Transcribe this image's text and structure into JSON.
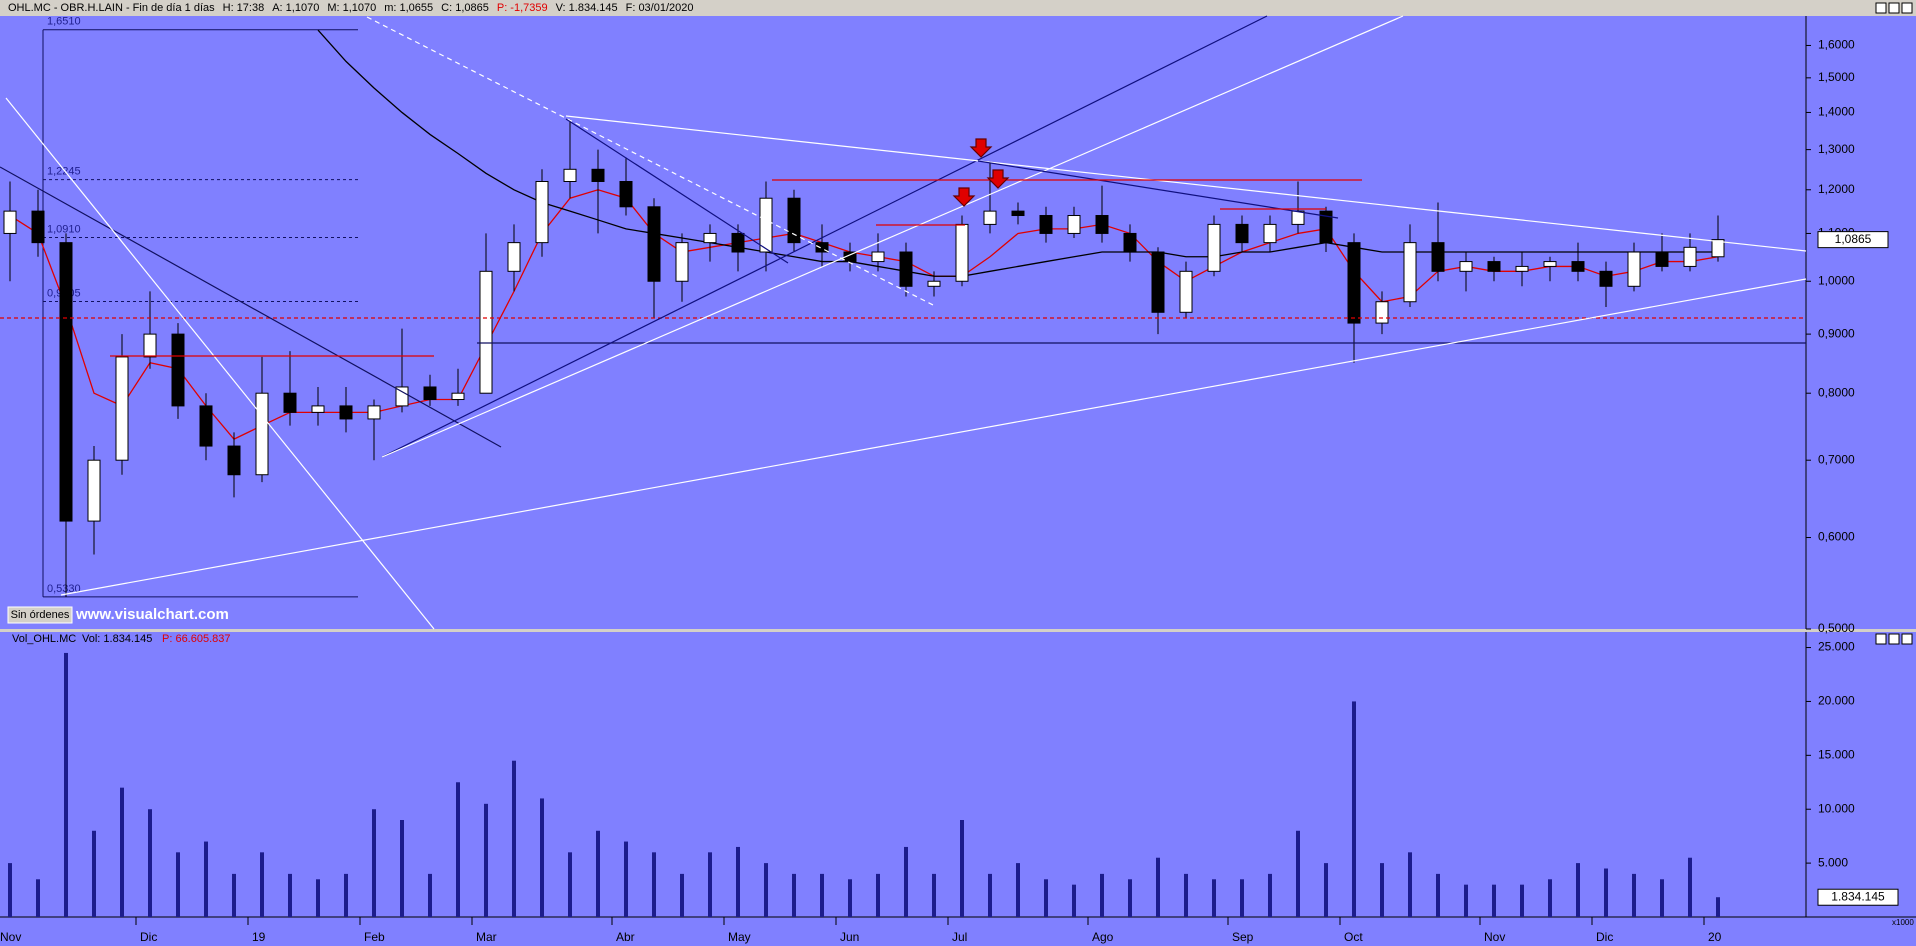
{
  "header": {
    "symbol": "OHL.MC - OBR.H.LAIN - Fin de día 1 días",
    "items": [
      "H: 17:38",
      "A: 1,1070",
      "M: 1,1070",
      "m: 1,0655",
      "C: 1,0865"
    ],
    "change": "P: -1,7359",
    "tail": [
      "V: 1.834.145",
      "F: 03/01/2020"
    ]
  },
  "badge": "Sin órdenes",
  "watermark": "www.visualchart.com",
  "chart_data": [
    {
      "type": "candlestick",
      "log_scale": true,
      "up_color": "#ffffff",
      "down_color": "#000000",
      "ylim": [
        0.5,
        1.69
      ],
      "yticks": [
        {
          "value": 0.5,
          "label": "0,5000"
        },
        {
          "value": 0.6,
          "label": "0,6000"
        },
        {
          "value": 0.7,
          "label": "0,7000"
        },
        {
          "value": 0.8,
          "label": "0,8000"
        },
        {
          "value": 0.9,
          "label": "0,9000"
        },
        {
          "value": 1.0,
          "label": "1,0000"
        },
        {
          "value": 1.1,
          "label": "1,1000"
        },
        {
          "value": 1.2,
          "label": "1,2000"
        },
        {
          "value": 1.3,
          "label": "1,3000"
        },
        {
          "value": 1.4,
          "label": "1,4000"
        },
        {
          "value": 1.5,
          "label": "1,5000"
        },
        {
          "value": 1.6,
          "label": "1,6000"
        }
      ],
      "open": [
        1.1,
        1.15,
        1.08,
        0.62,
        0.7,
        0.86,
        0.9,
        0.78,
        0.72,
        0.68,
        0.8,
        0.77,
        0.78,
        0.76,
        0.78,
        0.81,
        0.79,
        0.8,
        1.02,
        1.08,
        1.22,
        1.25,
        1.22,
        1.16,
        1.0,
        1.08,
        1.1,
        1.06,
        1.18,
        1.08,
        1.06,
        1.04,
        1.06,
        0.99,
        1.0,
        1.12,
        1.15,
        1.14,
        1.1,
        1.14,
        1.1,
        1.06,
        0.94,
        1.02,
        1.12,
        1.08,
        1.12,
        1.15,
        1.08,
        0.92,
        0.96,
        1.08,
        1.02,
        1.04,
        1.02,
        1.03,
        1.04,
        1.02,
        0.99,
        1.06,
        1.03,
        1.05
      ],
      "high": [
        1.22,
        1.2,
        1.1,
        0.72,
        0.9,
        0.98,
        0.92,
        0.8,
        0.74,
        0.86,
        0.87,
        0.81,
        0.81,
        0.79,
        0.91,
        0.83,
        0.84,
        1.1,
        1.12,
        1.25,
        1.38,
        1.3,
        1.28,
        1.18,
        1.1,
        1.12,
        1.12,
        1.22,
        1.2,
        1.12,
        1.08,
        1.1,
        1.08,
        1.02,
        1.14,
        1.27,
        1.17,
        1.16,
        1.16,
        1.21,
        1.12,
        1.07,
        1.04,
        1.14,
        1.14,
        1.14,
        1.22,
        1.16,
        1.1,
        0.98,
        1.12,
        1.17,
        1.06,
        1.05,
        1.06,
        1.05,
        1.08,
        1.04,
        1.08,
        1.1,
        1.1,
        1.14
      ],
      "low": [
        1.0,
        1.05,
        0.533,
        0.58,
        0.68,
        0.84,
        0.76,
        0.7,
        0.65,
        0.67,
        0.75,
        0.75,
        0.74,
        0.7,
        0.77,
        0.78,
        0.78,
        0.8,
        0.98,
        1.05,
        1.18,
        1.1,
        1.14,
        0.93,
        0.96,
        1.04,
        1.02,
        1.02,
        1.06,
        1.03,
        1.02,
        1.02,
        0.97,
        0.97,
        0.99,
        1.1,
        1.12,
        1.08,
        1.09,
        1.08,
        1.04,
        0.9,
        0.93,
        1.01,
        1.06,
        1.06,
        1.1,
        1.06,
        0.85,
        0.9,
        0.95,
        1.0,
        0.98,
        1.0,
        0.99,
        1.0,
        1.0,
        0.95,
        0.98,
        1.02,
        1.02,
        1.04
      ],
      "close": [
        1.15,
        1.08,
        0.62,
        0.7,
        0.86,
        0.9,
        0.78,
        0.72,
        0.68,
        0.8,
        0.77,
        0.78,
        0.76,
        0.78,
        0.81,
        0.79,
        0.8,
        1.02,
        1.08,
        1.22,
        1.25,
        1.22,
        1.16,
        1.0,
        1.08,
        1.1,
        1.06,
        1.18,
        1.08,
        1.06,
        1.04,
        1.06,
        0.99,
        1.0,
        1.12,
        1.15,
        1.14,
        1.1,
        1.14,
        1.1,
        1.06,
        0.94,
        1.02,
        1.12,
        1.08,
        1.12,
        1.15,
        1.08,
        0.92,
        0.96,
        1.08,
        1.02,
        1.04,
        1.02,
        1.03,
        1.04,
        1.02,
        0.99,
        1.06,
        1.03,
        1.07,
        1.0865
      ],
      "moving_averages": [
        {
          "color": "#e00000",
          "values": [
            1.14,
            1.1,
            0.95,
            0.8,
            0.78,
            0.85,
            0.84,
            0.78,
            0.73,
            0.75,
            0.77,
            0.77,
            0.77,
            0.77,
            0.78,
            0.79,
            0.79,
            0.88,
            0.98,
            1.1,
            1.18,
            1.2,
            1.18,
            1.1,
            1.06,
            1.07,
            1.08,
            1.09,
            1.1,
            1.08,
            1.06,
            1.05,
            1.04,
            1.01,
            1.01,
            1.05,
            1.1,
            1.11,
            1.11,
            1.12,
            1.1,
            1.04,
            1.0,
            1.03,
            1.06,
            1.08,
            1.1,
            1.11,
            1.02,
            0.96,
            0.97,
            1.02,
            1.03,
            1.02,
            1.02,
            1.03,
            1.03,
            1.01,
            1.02,
            1.04,
            1.04,
            1.05
          ]
        },
        {
          "color": "#000000",
          "values": [
            null,
            null,
            null,
            null,
            null,
            null,
            null,
            null,
            null,
            null,
            null,
            1.65,
            1.55,
            1.47,
            1.4,
            1.34,
            1.29,
            1.24,
            1.2,
            1.17,
            1.15,
            1.13,
            1.11,
            1.1,
            1.09,
            1.08,
            1.07,
            1.06,
            1.05,
            1.04,
            1.04,
            1.03,
            1.02,
            1.01,
            1.01,
            1.02,
            1.03,
            1.04,
            1.05,
            1.06,
            1.06,
            1.06,
            1.05,
            1.05,
            1.06,
            1.06,
            1.07,
            1.08,
            1.07,
            1.06,
            1.06,
            1.06,
            1.06,
            1.06,
            1.06,
            1.06,
            1.06,
            1.06,
            1.06,
            1.06,
            1.06,
            1.06
          ]
        }
      ],
      "fib_levels": [
        {
          "value": 1.651,
          "label": "1,6510"
        },
        {
          "value": 1.2245,
          "label": "1,2245"
        },
        {
          "value": 1.091,
          "label": "1,0910"
        },
        {
          "value": 0.9605,
          "label": "0,9605"
        },
        {
          "value": 0.533,
          "label": "0,5330"
        }
      ],
      "last_price": {
        "value": 1.0865,
        "label": "1,0865"
      }
    },
    {
      "type": "bar",
      "title": "Vol_OHL.MC",
      "info": "Vol: 1.834.145",
      "info2": "P: 66.605.837",
      "unit_note": "x1000",
      "color": "#1c1c8c",
      "categories": [
        "Nov",
        null,
        null,
        null,
        null,
        "Dic",
        null,
        null,
        null,
        "19",
        null,
        null,
        null,
        "Feb",
        null,
        null,
        null,
        "Mar",
        null,
        null,
        null,
        null,
        "Abr",
        null,
        null,
        null,
        "May",
        null,
        null,
        null,
        "Jun",
        null,
        null,
        null,
        "Jul",
        null,
        null,
        null,
        null,
        "Ago",
        null,
        null,
        null,
        null,
        "Sep",
        null,
        null,
        null,
        "Oct",
        null,
        null,
        null,
        null,
        "Nov",
        null,
        null,
        null,
        "Dic",
        null,
        null,
        null,
        "20"
      ],
      "values": [
        5000,
        3500,
        24500,
        8000,
        12000,
        10000,
        6000,
        7000,
        4000,
        6000,
        4000,
        3500,
        4000,
        10000,
        9000,
        4000,
        12500,
        10500,
        14500,
        11000,
        6000,
        8000,
        7000,
        6000,
        4000,
        6000,
        6500,
        5000,
        4000,
        4000,
        3500,
        4000,
        6500,
        4000,
        9000,
        4000,
        5000,
        3500,
        3000,
        4000,
        3500,
        5500,
        4000,
        3500,
        3500,
        4000,
        8000,
        5000,
        20000,
        5000,
        6000,
        4000,
        3000,
        3000,
        3000,
        3500,
        5000,
        4500,
        4000,
        3500,
        5500,
        1834.145
      ],
      "value_labels": [
        null,
        null,
        null,
        null,
        null,
        null,
        null,
        null,
        null,
        null,
        null,
        null,
        null,
        null,
        null,
        null,
        null,
        null,
        null,
        null,
        null,
        null,
        null,
        null,
        null,
        null,
        null,
        null,
        null,
        null,
        null,
        null,
        null,
        null,
        null,
        null,
        null,
        null,
        null,
        null,
        null,
        null,
        null,
        null,
        null,
        null,
        null,
        null,
        null,
        null,
        null,
        null,
        null,
        null,
        null,
        null,
        null,
        null,
        null,
        null,
        null,
        "1.834.145"
      ],
      "ylim": [
        0,
        25700
      ],
      "yticks": [
        {
          "value": 5000,
          "label": "5.000"
        },
        {
          "value": 10000,
          "label": "10.000"
        },
        {
          "value": 15000,
          "label": "15.000"
        },
        {
          "value": 20000,
          "label": "20.000"
        },
        {
          "value": 25000,
          "label": "25.000"
        }
      ]
    }
  ]
}
